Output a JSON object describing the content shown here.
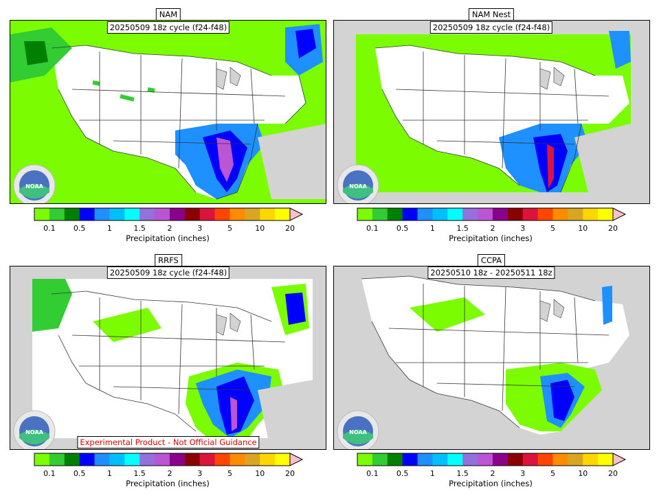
{
  "panels": [
    {
      "id": "nam",
      "title": "NAM",
      "subtitle": "20250509 18z cycle (f24-f48)",
      "warning": ""
    },
    {
      "id": "nam_nest",
      "title": "NAM Nest",
      "subtitle": "20250509 18z cycle (f24-f48)",
      "warning": ""
    },
    {
      "id": "rrfs",
      "title": "RRFS",
      "subtitle": "20250509 18z cycle (f24-f48)",
      "warning": "Experimental Product - Not Official Guidance"
    },
    {
      "id": "ccpa",
      "title": "CCPA",
      "subtitle": "20250510 18z - 20250511 18z",
      "warning": ""
    }
  ],
  "logo_text": "NOAA",
  "colorbar": {
    "label": "Precipitation (inches)",
    "ticks": [
      "0.1",
      "0.5",
      "1",
      "1.5",
      "2",
      "3",
      "5",
      "10",
      "20"
    ],
    "colors": [
      "#7cfc00",
      "#32cd32",
      "#008000",
      "#0000ff",
      "#1e90ff",
      "#00bfff",
      "#00ffff",
      "#9370db",
      "#ba55d3",
      "#8b008b",
      "#8b0000",
      "#dc143c",
      "#ff4500",
      "#ff8c00",
      "#daa520",
      "#ffd700",
      "#ffff00"
    ],
    "extend_color": "#ffc0cb"
  }
}
